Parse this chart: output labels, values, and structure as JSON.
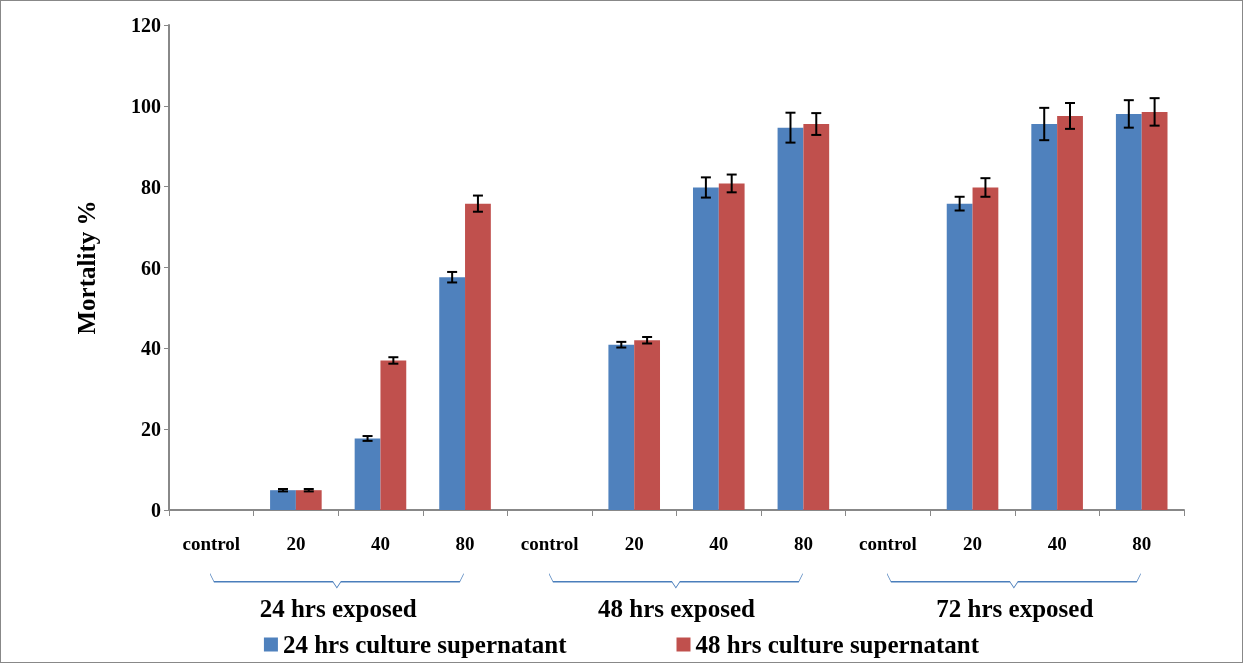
{
  "chart_data": {
    "type": "bar",
    "ylabel": "Mortality %",
    "categories": [
      "control",
      "20",
      "40",
      "80",
      "control",
      "20",
      "40",
      "80",
      "control",
      "20",
      "40",
      "80"
    ],
    "series": [
      {
        "name": "24 hrs culture supernatant",
        "color": "#4f81bd",
        "values": [
          0,
          4.9,
          17.7,
          57.6,
          0,
          40.9,
          79.8,
          94.6,
          0,
          75.8,
          95.5,
          98.0
        ],
        "errors": [
          null,
          0.3,
          0.6,
          1.3,
          null,
          0.7,
          2.5,
          3.7,
          null,
          1.7,
          4.0,
          3.4
        ]
      },
      {
        "name": "48 hrs culture supernatant",
        "color": "#c0504d",
        "values": [
          0,
          4.9,
          37.0,
          75.8,
          0,
          42.0,
          80.8,
          95.5,
          0,
          79.8,
          97.5,
          98.5
        ],
        "errors": [
          null,
          0.3,
          0.8,
          2.0,
          null,
          0.8,
          2.2,
          2.7,
          null,
          2.3,
          3.2,
          3.4
        ]
      }
    ],
    "annotations": [
      "24 hrs exposed",
      "48 hrs exposed",
      "72 hrs exposed"
    ],
    "ylim": [
      0,
      120
    ],
    "yticks": [
      0,
      20,
      40,
      60,
      80,
      100,
      120
    ],
    "grid": false,
    "legend": "bottom"
  }
}
